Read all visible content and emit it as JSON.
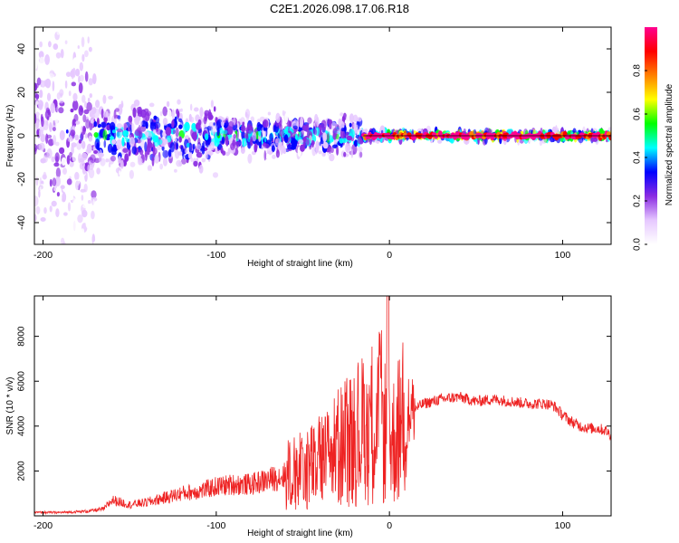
{
  "title": "C2E1.2026.098.17.06.R18",
  "chart_data": [
    {
      "type": "heatmap",
      "title": "C2E1.2026.098.17.06.R18",
      "xlabel": "Height of straight line (km)",
      "ylabel": "Frequency (Hz)",
      "xlim": [
        -205,
        128
      ],
      "ylim": [
        -50,
        50
      ],
      "xticks": [
        -200,
        -100,
        0,
        100
      ],
      "yticks": [
        -40,
        -20,
        0,
        20,
        40
      ],
      "colorbar": {
        "label": "Normalized spectral amplitude",
        "range": [
          0,
          1
        ],
        "ticks": [
          0.0,
          0.2,
          0.4,
          0.6,
          0.8
        ],
        "colors": [
          "#ffffff",
          "#e6c8ff",
          "#8a2be2",
          "#0000ff",
          "#00ffff",
          "#00ff00",
          "#ffff00",
          "#ff8000",
          "#ff0000",
          "#ff0090"
        ]
      },
      "description_bands": [
        {
          "x_from": -205,
          "x_to": -170,
          "freq_spread": 50,
          "amplitude": 0.25
        },
        {
          "x_from": -170,
          "x_to": -100,
          "freq_spread": 15,
          "amplitude": 0.4
        },
        {
          "x_from": -100,
          "x_to": -15,
          "freq_spread": 9,
          "amplitude": 0.45
        },
        {
          "x_from": -15,
          "x_to": 128,
          "freq_spread": 2,
          "amplitude": 0.75
        }
      ]
    },
    {
      "type": "line",
      "xlabel": "Height of straight line (km)",
      "ylabel": "SNR (10 * v/v)",
      "xlim": [
        -205,
        128
      ],
      "ylim": [
        0,
        9800
      ],
      "xticks": [
        -200,
        -100,
        0,
        100
      ],
      "yticks": [
        2000,
        4000,
        6000,
        8000
      ],
      "series": [
        {
          "name": "SNR",
          "color": "#ee2222",
          "x": [
            -205,
            -190,
            -175,
            -165,
            -160,
            -150,
            -140,
            -130,
            -120,
            -110,
            -100,
            -90,
            -80,
            -70,
            -60,
            -50,
            -40,
            -35,
            -30,
            -25,
            -20,
            -15,
            -10,
            -5,
            0,
            5,
            10,
            20,
            30,
            40,
            50,
            60,
            70,
            80,
            90,
            95,
            100,
            105,
            110,
            115,
            120,
            125,
            128
          ],
          "values": [
            150,
            150,
            200,
            300,
            700,
            500,
            600,
            800,
            1000,
            1100,
            1300,
            1400,
            1400,
            1600,
            1800,
            2000,
            2400,
            2600,
            3000,
            3300,
            3500,
            3900,
            4200,
            4500,
            3000,
            3800,
            4600,
            5000,
            5200,
            5300,
            5100,
            5200,
            5100,
            5000,
            5000,
            4900,
            4500,
            4200,
            4000,
            3900,
            3900,
            3800,
            3600
          ]
        }
      ]
    }
  ]
}
